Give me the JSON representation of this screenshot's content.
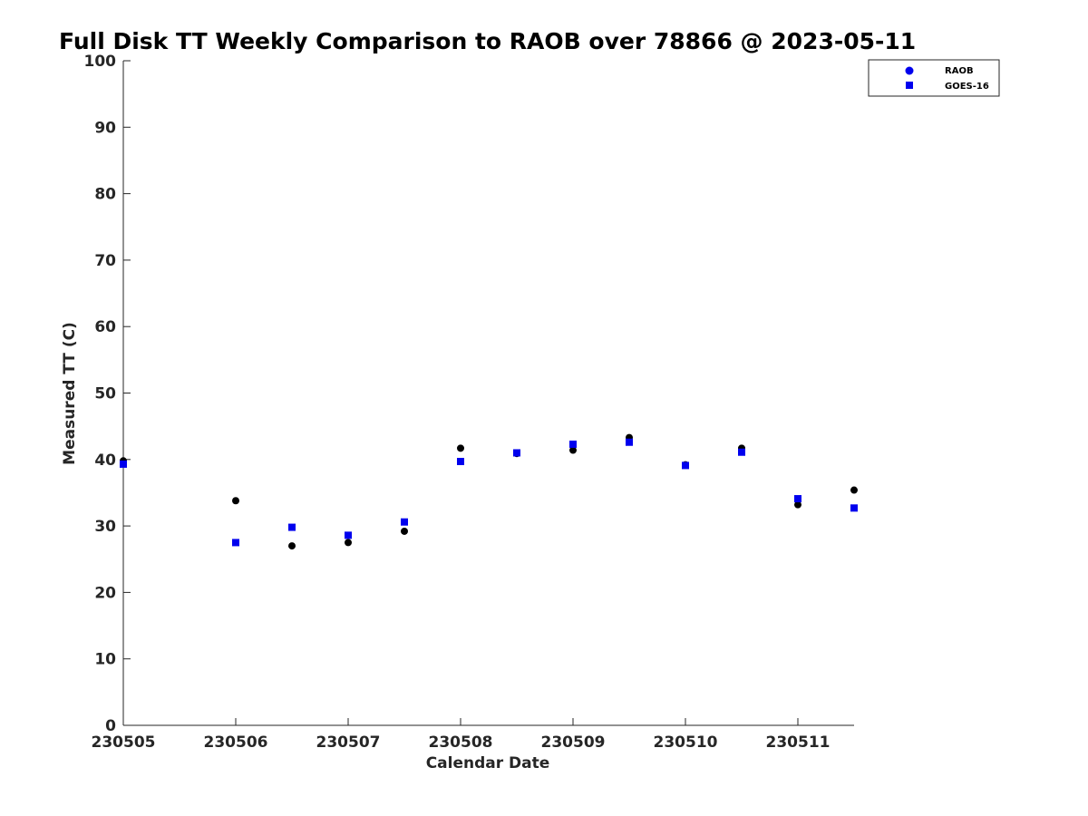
{
  "chart_data": {
    "type": "scatter",
    "title": "Full Disk TT Weekly Comparison to RAOB over 78866 @ 2023-05-11",
    "xlabel": "Calendar Date",
    "ylabel": "Measured TT (C)",
    "xticks": [
      "230505",
      "230506",
      "230507",
      "230508",
      "230509",
      "230510",
      "230511"
    ],
    "xlim": [
      "230505",
      "230511.5"
    ],
    "ylim": [
      0,
      100
    ],
    "yticks": [
      0,
      10,
      20,
      30,
      40,
      50,
      60,
      70,
      80,
      90,
      100
    ],
    "grid": false,
    "legend_position": "top-right",
    "x": [
      "230505 00",
      "230506 00",
      "230506 12",
      "230507 00",
      "230507 12",
      "230508 00",
      "230508 12",
      "230509 00",
      "230509 12",
      "230510 00",
      "230510 12",
      "230511 00",
      "230511 12"
    ],
    "series": [
      {
        "name": "RAOB",
        "marker": "circle",
        "color": "#000000",
        "legend_color": "#0000ee",
        "values": [
          39.8,
          33.8,
          27.0,
          27.5,
          29.2,
          41.7,
          40.9,
          41.4,
          43.3,
          39.2,
          41.7,
          33.2,
          35.4
        ]
      },
      {
        "name": "GOES-16",
        "marker": "square",
        "color": "#0000ee",
        "values": [
          39.3,
          27.5,
          29.8,
          28.6,
          30.6,
          39.7,
          41.0,
          42.3,
          42.6,
          39.1,
          41.1,
          34.1,
          32.7
        ]
      }
    ]
  }
}
